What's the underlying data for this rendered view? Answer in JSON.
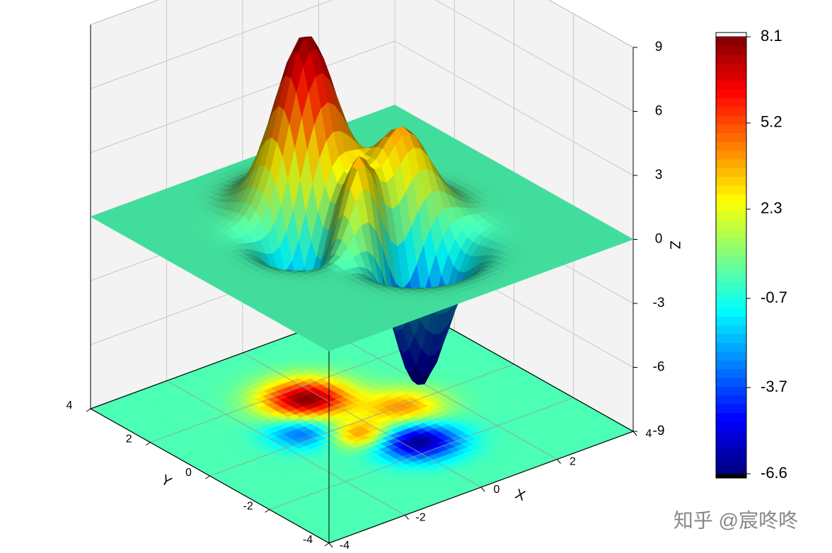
{
  "chart_data": {
    "type": "surface3d",
    "xlabel": "X",
    "ylabel": "Y",
    "zlabel": "Z",
    "xlim": [
      -4,
      4
    ],
    "ylim": [
      -4,
      4
    ],
    "zlim": [
      -9,
      9
    ],
    "xticks": [
      -4,
      -2,
      0,
      2,
      4
    ],
    "yticks": [
      -4,
      -2,
      0,
      2,
      4
    ],
    "zticks": [
      -9,
      -6,
      -3,
      0,
      3,
      6,
      9
    ],
    "peaks": [
      {
        "x": -0.3,
        "y": 1.5,
        "z": 8.1,
        "sigma": 0.65
      },
      {
        "x": 0.3,
        "y": -1.5,
        "z": -6.6,
        "sigma": 0.6
      },
      {
        "x": 1.0,
        "y": -0.1,
        "z": 4.2,
        "sigma": 0.6
      },
      {
        "x": -0.4,
        "y": -0.5,
        "z": 4.5,
        "sigma": 0.45
      },
      {
        "x": -1.3,
        "y": 0.35,
        "z": -3.5,
        "sigma": 0.5
      }
    ],
    "colorbar": {
      "colormap": "jet",
      "clim": [
        -6.6,
        8.1
      ],
      "ticks": [
        8.1,
        5.2,
        2.3,
        -0.7,
        -3.7,
        -6.6
      ]
    }
  },
  "watermark": "知乎 @宸咚咚"
}
